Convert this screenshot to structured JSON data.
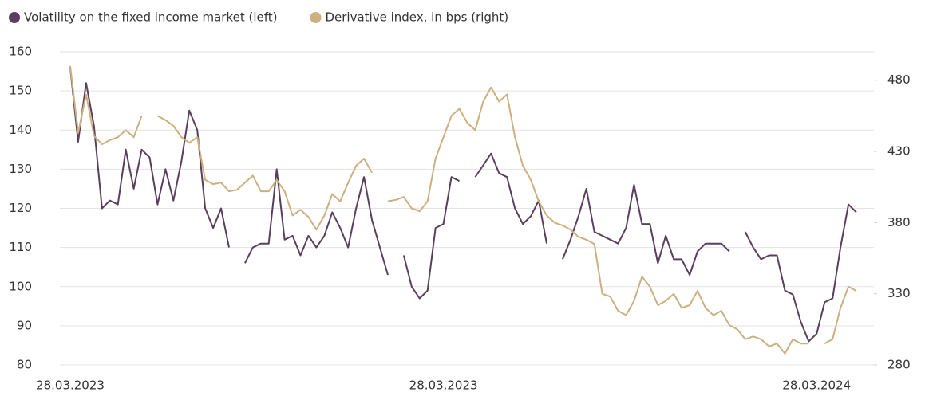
{
  "chart_data": {
    "type": "line",
    "categories": [
      "28.03.2023",
      null,
      null,
      null,
      null,
      null,
      null,
      null,
      null,
      null,
      null,
      null,
      null,
      null,
      null,
      null,
      null,
      null,
      null,
      null,
      null,
      null,
      null,
      null,
      null,
      null,
      null,
      null,
      null,
      null,
      null,
      null,
      null,
      null,
      null,
      null,
      null,
      null,
      null,
      null,
      null,
      null,
      null,
      null,
      null,
      null,
      null,
      "28.03.2023",
      null,
      null,
      null,
      null,
      null,
      null,
      null,
      null,
      null,
      null,
      null,
      null,
      null,
      null,
      null,
      null,
      null,
      null,
      null,
      null,
      null,
      null,
      null,
      null,
      null,
      null,
      null,
      null,
      null,
      null,
      null,
      null,
      null,
      null,
      null,
      null,
      null,
      null,
      null,
      null,
      null,
      null,
      null,
      null,
      null,
      null,
      "28.03.2024",
      null,
      null,
      null,
      null,
      null
    ],
    "series": [
      {
        "name": "Volatility on the fixed income market (left)",
        "color": "#5b3e5e",
        "axis": "y",
        "values": [
          156,
          137,
          152,
          141,
          120,
          122,
          121,
          135,
          125,
          135,
          133,
          121,
          130,
          122,
          132,
          145,
          140,
          120,
          115,
          120,
          110,
          null,
          106,
          110,
          111,
          111,
          130,
          112,
          113,
          108,
          113,
          110,
          113,
          119,
          115,
          110,
          120,
          128,
          117,
          110,
          103,
          null,
          108,
          100,
          97,
          99,
          115,
          116,
          128,
          127,
          null,
          128,
          131,
          134,
          129,
          128,
          120,
          116,
          118,
          122,
          111,
          null,
          107,
          112,
          118,
          125,
          114,
          113,
          112,
          111,
          115,
          126,
          116,
          116,
          106,
          113,
          107,
          107,
          103,
          109,
          111,
          111,
          111,
          109,
          null,
          114,
          110,
          107,
          108,
          108,
          99,
          98,
          91,
          86,
          88,
          96,
          97,
          110,
          121,
          119
        ]
      },
      {
        "name": "Derivative index, in bps (right)",
        "color": "#cdb07f",
        "axis": "y2",
        "values": [
          490,
          443,
          470,
          441,
          435,
          438,
          440,
          445,
          440,
          455,
          null,
          455,
          452,
          448,
          440,
          436,
          440,
          410,
          407,
          408,
          402,
          403,
          408,
          413,
          402,
          402,
          410,
          402,
          385,
          389,
          384,
          375,
          385,
          400,
          395,
          408,
          420,
          425,
          415,
          null,
          395,
          396,
          398,
          390,
          388,
          395,
          425,
          440,
          455,
          460,
          450,
          445,
          465,
          475,
          465,
          470,
          440,
          420,
          410,
          395,
          385,
          380,
          378,
          375,
          370,
          368,
          365,
          330,
          328,
          318,
          315,
          325,
          342,
          335,
          322,
          325,
          330,
          320,
          322,
          332,
          320,
          315,
          318,
          308,
          305,
          298,
          300,
          298,
          293,
          295,
          288,
          298,
          295,
          295,
          null,
          295,
          298,
          320,
          335,
          332
        ]
      }
    ],
    "ylim": [
      80,
      160
    ],
    "yticks": [
      80,
      90,
      100,
      110,
      120,
      130,
      140,
      150,
      160
    ],
    "y2lim": [
      280,
      500
    ],
    "y2ticks": [
      280,
      330,
      380,
      430,
      480
    ],
    "grid": true,
    "legend": "top-left"
  }
}
